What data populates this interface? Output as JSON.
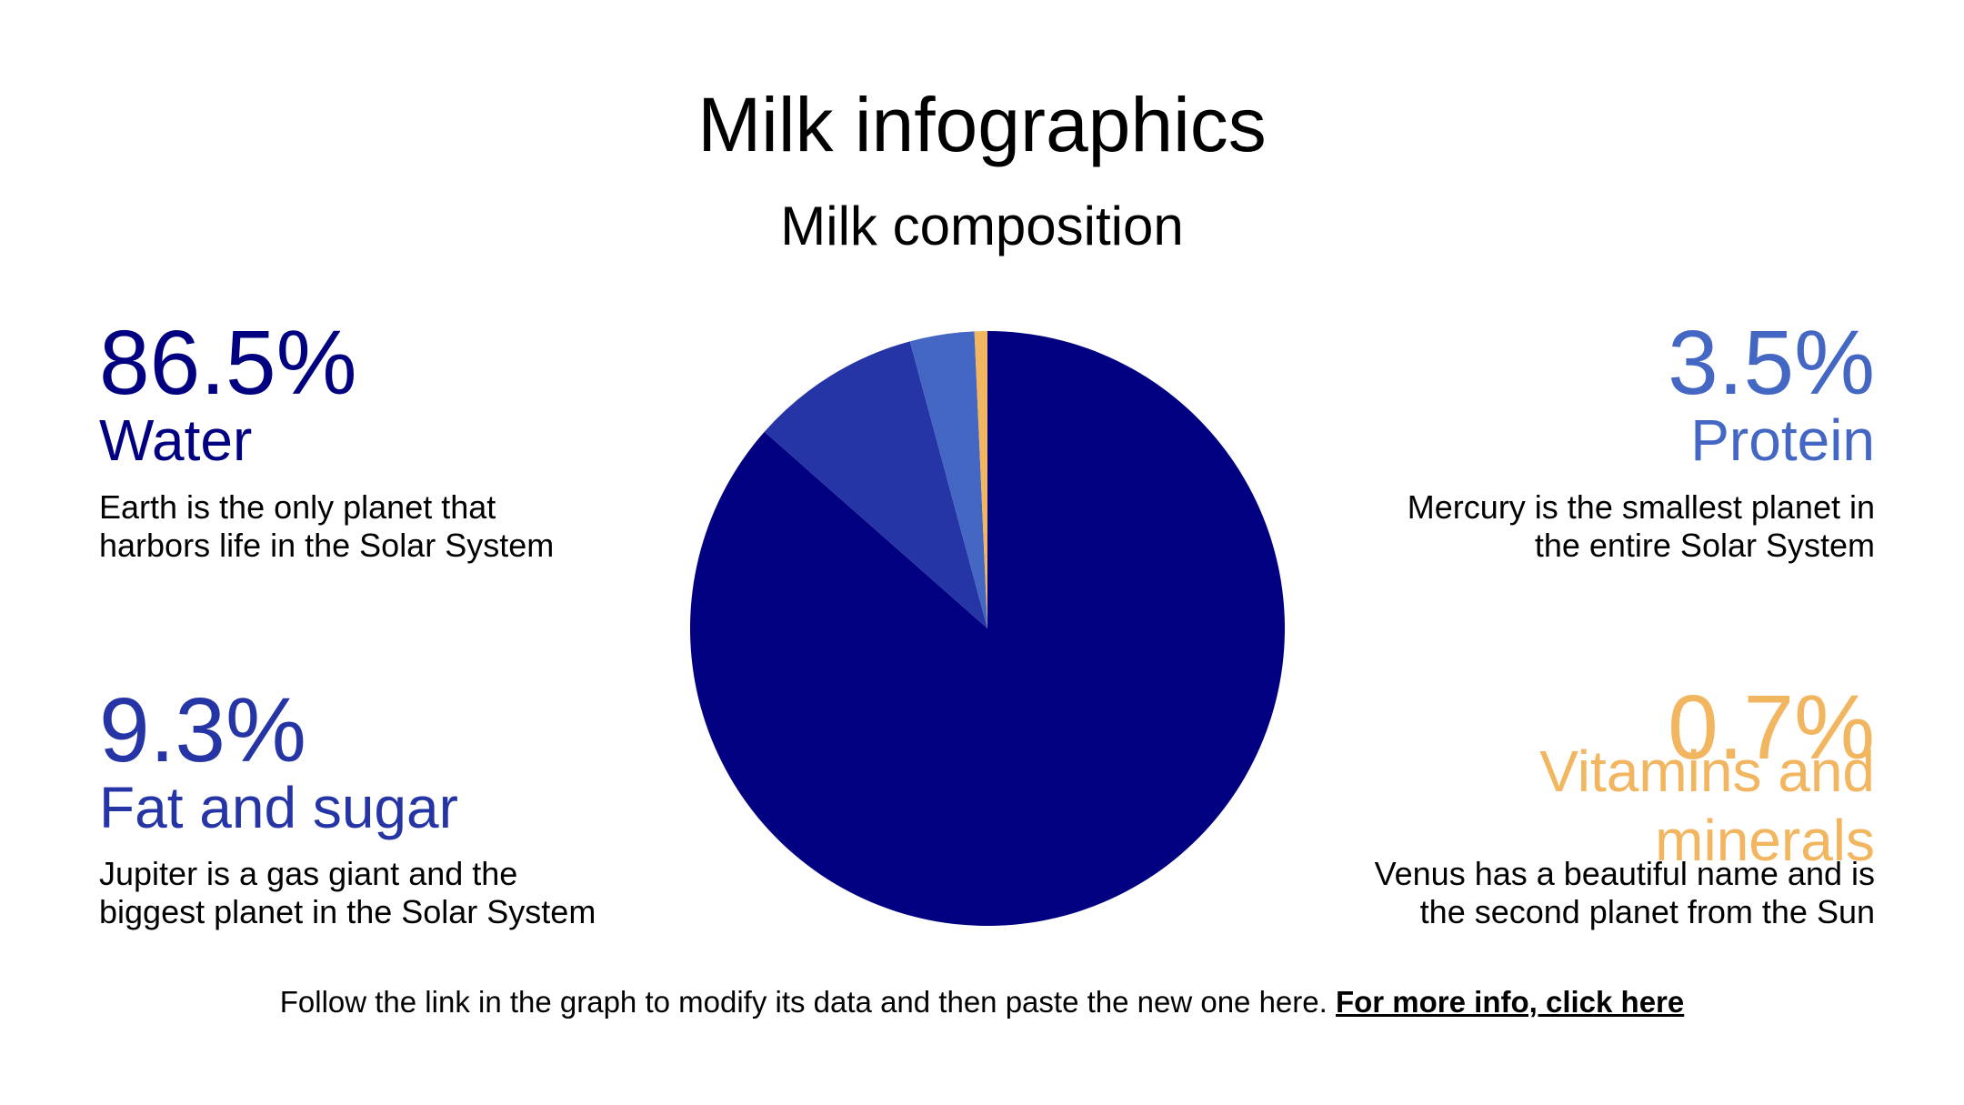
{
  "chart_data": {
    "type": "pie",
    "title": "Milk infographics",
    "subtitle": "Milk composition",
    "categories": [
      "Water",
      "Fat and sugar",
      "Protein",
      "Vitamins and minerals"
    ],
    "values": [
      86.5,
      9.3,
      3.5,
      0.7
    ],
    "value_labels": [
      "86.5%",
      "9.3%",
      "3.5%",
      "0.7%"
    ],
    "colors": [
      "#000080",
      "#2635a6",
      "#4467c4",
      "#f2b661"
    ],
    "descriptions": [
      [
        "Earth is the only planet that",
        "harbors life in the Solar System"
      ],
      [
        "Jupiter is a gas giant and the",
        "biggest planet in the Solar System"
      ],
      [
        "Mercury is the smallest planet in",
        "the entire Solar System"
      ],
      [
        "Venus has a beautiful name and is",
        "the second planet from the Sun"
      ]
    ]
  },
  "footer": {
    "text": "Follow the link in the graph to modify its data and then paste the new one here.",
    "link": "For more info, click here"
  }
}
